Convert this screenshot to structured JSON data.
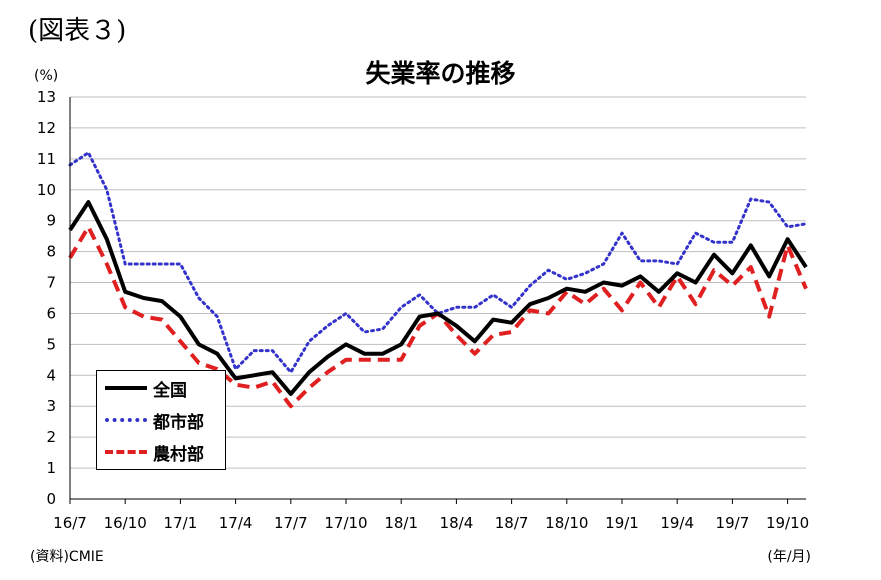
{
  "figure_label": "(図表３)",
  "chart_data": {
    "type": "line",
    "title": "失業率の推移",
    "ylabel": "(%)",
    "xlabel": "(年/月)",
    "source": "(資料)CMIE",
    "ylim": [
      0,
      13
    ],
    "yticks": [
      "0",
      "1",
      "2",
      "3",
      "4",
      "5",
      "6",
      "7",
      "8",
      "9",
      "10",
      "11",
      "12",
      "13"
    ],
    "x_tick_labels": [
      "16/7",
      "16/10",
      "17/1",
      "17/4",
      "17/7",
      "17/10",
      "18/1",
      "18/4",
      "18/7",
      "18/10",
      "19/1",
      "19/4",
      "19/7",
      "19/10"
    ],
    "x": [
      "16/7",
      "16/8",
      "16/9",
      "16/10",
      "16/11",
      "16/12",
      "17/1",
      "17/2",
      "17/3",
      "17/4",
      "17/5",
      "17/6",
      "17/7",
      "17/8",
      "17/9",
      "17/10",
      "17/11",
      "17/12",
      "18/1",
      "18/2",
      "18/3",
      "18/4",
      "18/5",
      "18/6",
      "18/7",
      "18/8",
      "18/9",
      "18/10",
      "18/11",
      "18/12",
      "19/1",
      "19/2",
      "19/3",
      "19/4",
      "19/5",
      "19/6",
      "19/7",
      "19/8",
      "19/9",
      "19/10",
      "19/11"
    ],
    "grid": "horizontal",
    "legend_position": "bottom-left",
    "series": [
      {
        "name": "全国",
        "color": "#000000",
        "style": "solid",
        "values": [
          8.7,
          9.6,
          8.4,
          6.7,
          6.5,
          6.4,
          5.9,
          5.0,
          4.7,
          3.9,
          4.0,
          4.1,
          3.4,
          4.1,
          4.6,
          5.0,
          4.7,
          4.7,
          5.0,
          5.9,
          6.0,
          5.6,
          5.1,
          5.8,
          5.7,
          6.3,
          6.5,
          6.8,
          6.7,
          7.0,
          6.9,
          7.2,
          6.7,
          7.3,
          7.0,
          7.9,
          7.3,
          8.2,
          7.2,
          8.4,
          7.5
        ]
      },
      {
        "name": "都市部",
        "color": "#3333cc",
        "style": "dotted",
        "values": [
          10.8,
          11.2,
          10.0,
          7.6,
          7.6,
          7.6,
          7.6,
          6.5,
          5.9,
          4.2,
          4.8,
          4.8,
          4.1,
          5.1,
          5.6,
          6.0,
          5.4,
          5.5,
          6.2,
          6.6,
          6.0,
          6.2,
          6.2,
          6.6,
          6.2,
          6.9,
          7.4,
          7.1,
          7.3,
          7.6,
          8.6,
          7.7,
          7.7,
          7.6,
          8.6,
          8.3,
          8.3,
          9.7,
          9.6,
          8.8,
          8.9
        ]
      },
      {
        "name": "農村部",
        "color": "#e02020",
        "style": "dashed",
        "values": [
          7.8,
          8.8,
          7.6,
          6.2,
          5.9,
          5.8,
          5.1,
          4.4,
          4.2,
          3.7,
          3.6,
          3.8,
          3.0,
          3.6,
          4.1,
          4.5,
          4.5,
          4.5,
          4.5,
          5.6,
          6.0,
          5.3,
          4.7,
          5.3,
          5.4,
          6.1,
          6.0,
          6.7,
          6.3,
          6.8,
          6.1,
          7.0,
          6.2,
          7.2,
          6.3,
          7.4,
          6.9,
          7.5,
          5.9,
          8.2,
          6.8
        ]
      }
    ]
  }
}
